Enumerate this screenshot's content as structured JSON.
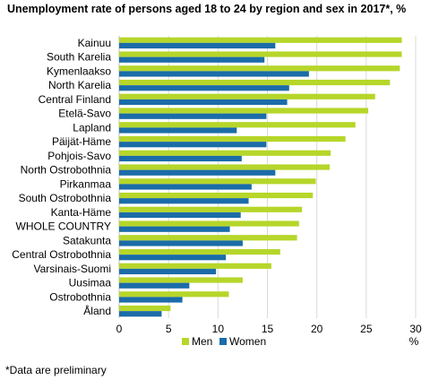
{
  "title": "Unemployment rate of persons aged 18 to 24 by region and sex in 2017*, %",
  "footnote": "*Data are preliminary",
  "chart_data": {
    "type": "bar",
    "orientation": "horizontal",
    "title": "Unemployment rate of persons aged 18 to 24 by region and sex in 2017*, %",
    "xlabel": "%",
    "ylabel": "",
    "xlim": [
      0,
      30
    ],
    "xticks": [
      0,
      5,
      10,
      15,
      20,
      25,
      30
    ],
    "grid": "vertical",
    "legend": "bottom",
    "categories": [
      "Kainuu",
      "South Karelia",
      "Kymenlaakso",
      "North Karelia",
      "Central Finland",
      "Etelä-Savo",
      "Lapland",
      "Päijät-Häme",
      "Pohjois-Savo",
      "North Ostrobothnia",
      "Pirkanmaa",
      "South Ostrobothnia",
      "Kanta-Häme",
      "WHOLE COUNTRY",
      "Satakunta",
      "Central Ostrobothnia",
      "Varsinais-Suomi",
      "Uusimaa",
      "Ostrobothnia",
      "Åland"
    ],
    "series": [
      {
        "name": "Men",
        "color": "#b6d62a",
        "values": [
          28.6,
          28.6,
          28.4,
          27.4,
          25.9,
          25.2,
          23.9,
          22.9,
          21.4,
          21.3,
          19.9,
          19.6,
          18.5,
          18.2,
          18.0,
          16.3,
          15.4,
          12.5,
          11.1,
          5.2
        ]
      },
      {
        "name": "Women",
        "color": "#1b6ca8",
        "values": [
          15.8,
          14.7,
          19.2,
          17.2,
          17.0,
          14.9,
          11.9,
          14.9,
          12.4,
          15.8,
          13.4,
          13.1,
          12.3,
          11.2,
          12.5,
          10.8,
          9.8,
          7.1,
          6.4,
          4.3
        ]
      }
    ]
  }
}
